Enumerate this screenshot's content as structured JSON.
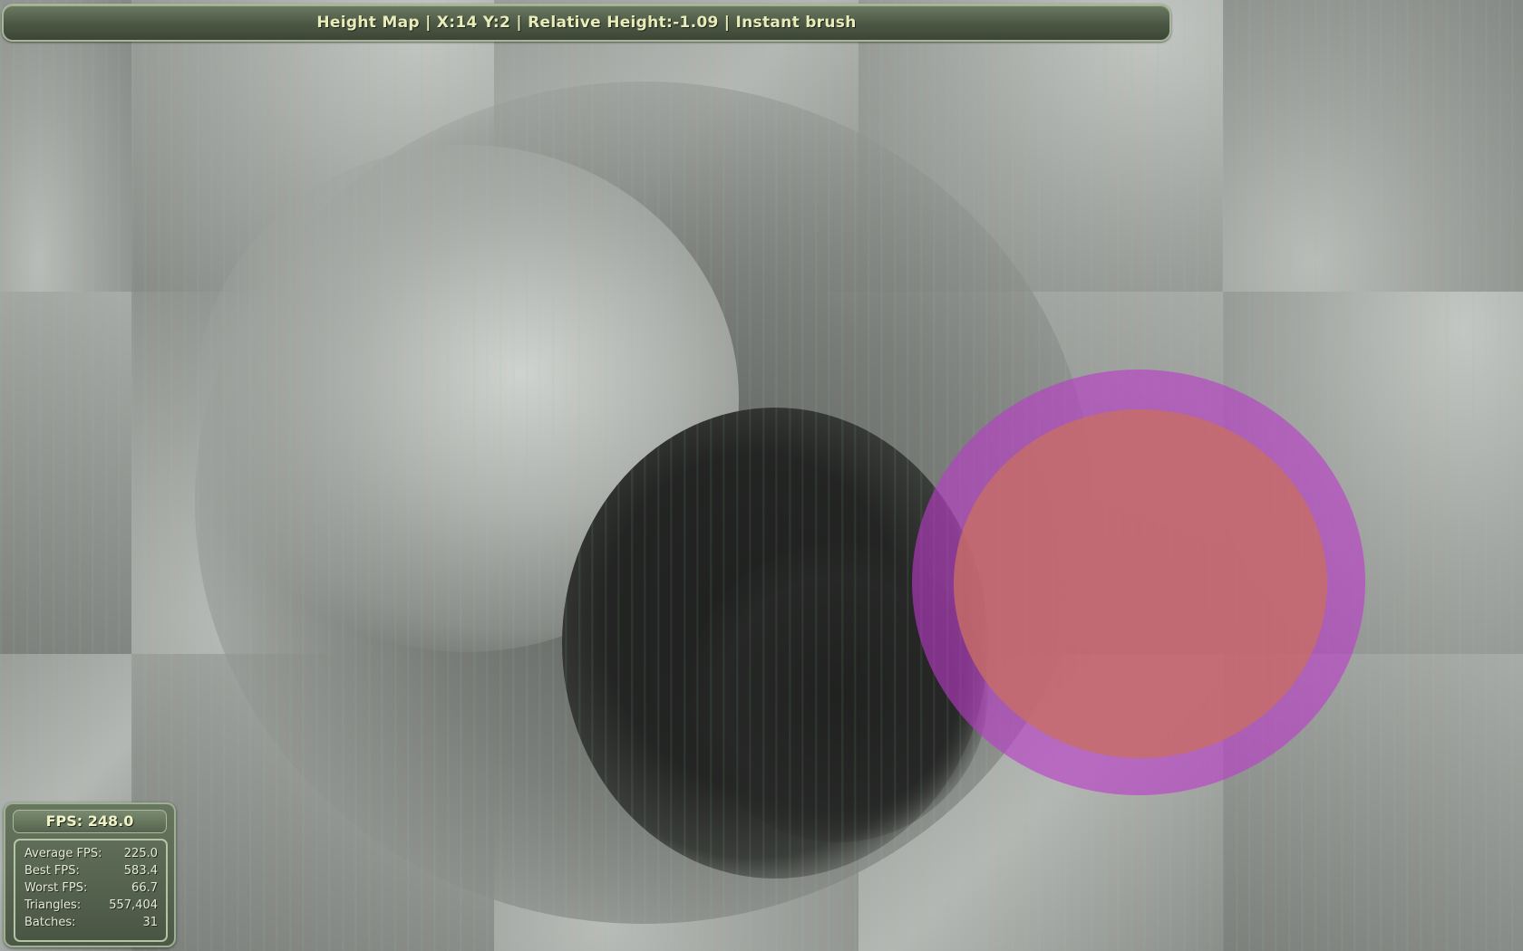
{
  "status_bar": {
    "text": "Height Map | X:14 Y:2 | Relative Height:-1.09 | Instant brush"
  },
  "fps_panel": {
    "header": "FPS: 248.0",
    "stats": [
      {
        "label": "Average FPS:",
        "value": "225.0"
      },
      {
        "label": "Best FPS:",
        "value": "583.4"
      },
      {
        "label": "Worst FPS:",
        "value": "66.7"
      },
      {
        "label": "Triangles:",
        "value": "557,404"
      },
      {
        "label": "Batches:",
        "value": "31"
      }
    ]
  },
  "brush": {
    "outer_color": "#b93cc8",
    "inner_color": "#c86e64"
  }
}
